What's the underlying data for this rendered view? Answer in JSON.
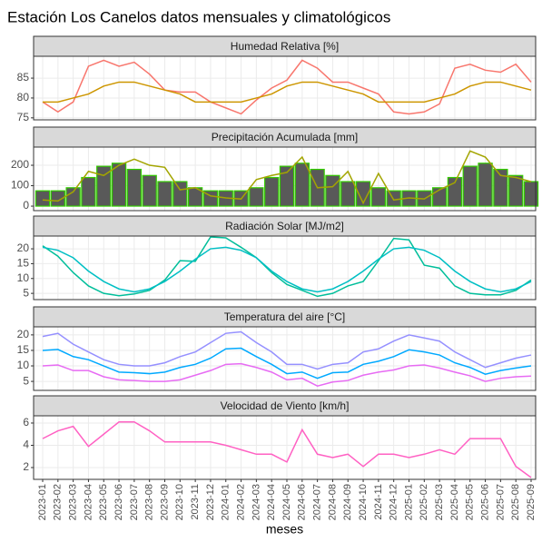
{
  "title": "Estación Los Canelos datos mensuales y climatológicos",
  "chart_data": [
    {
      "type": "line",
      "title": "Humedad Relativa [%]",
      "ylim": [
        74.5,
        90.5
      ],
      "yticks": [
        75,
        80,
        85
      ],
      "grid": true,
      "series": [
        {
          "color": "#F8766D",
          "values": [
            79,
            76.5,
            79,
            88,
            89.5,
            88,
            89,
            86,
            82,
            81.5,
            81.5,
            79,
            77.5,
            76,
            79.5,
            82.5,
            84.5,
            89.5,
            87.5,
            84,
            84,
            82.5,
            81,
            76.5,
            76,
            76.5,
            78.5,
            87.5,
            88.5,
            87,
            86.5,
            88.5,
            84
          ]
        },
        {
          "color": "#CD9600",
          "values": [
            79,
            79,
            80,
            81,
            83,
            84,
            84,
            83,
            82,
            81,
            79,
            79,
            79,
            79,
            80,
            81,
            83,
            84,
            84,
            83,
            82,
            81,
            79,
            79,
            79,
            79,
            80,
            81,
            83,
            84,
            84,
            83,
            82
          ]
        }
      ]
    },
    {
      "type": "bar_line",
      "title": "Precipitación Acumulada [mm]",
      "ylim": [
        -22,
        289
      ],
      "yticks": [
        0,
        100,
        200
      ],
      "grid": true,
      "values": [
        75,
        75,
        90,
        140,
        195,
        210,
        180,
        150,
        120,
        120,
        90,
        75,
        75,
        75,
        90,
        140,
        195,
        210,
        180,
        150,
        120,
        120,
        90,
        75,
        75,
        75,
        90,
        140,
        195,
        210,
        180,
        150,
        120
      ],
      "color": "#595959",
      "edgecolor": "#33CC00",
      "series": [
        {
          "color": "#A3A500",
          "values": [
            30,
            25,
            70,
            170,
            150,
            200,
            230,
            200,
            190,
            80,
            90,
            50,
            40,
            35,
            130,
            150,
            165,
            240,
            90,
            95,
            170,
            15,
            160,
            30,
            40,
            35,
            80,
            115,
            270,
            240,
            150,
            140,
            120
          ]
        }
      ]
    },
    {
      "type": "line",
      "title": "Radiación Solar [MJ/m2]",
      "ylim": [
        2.9,
        24.3
      ],
      "yticks": [
        5,
        10,
        15,
        20
      ],
      "grid": true,
      "series": [
        {
          "color": "#00BE9A",
          "values": [
            21,
            17.5,
            12,
            7.5,
            5,
            4.2,
            4.8,
            6,
            9.5,
            16,
            15.8,
            24,
            23.7,
            20.5,
            17,
            12,
            8,
            6,
            4,
            5,
            7.5,
            9,
            16,
            23.5,
            23,
            14.5,
            13.5,
            7.5,
            5,
            4.5,
            4.5,
            6,
            9.5
          ]
        },
        {
          "color": "#00BFC4",
          "values": [
            20.5,
            19.5,
            17,
            12.5,
            9,
            6.5,
            5.5,
            6.5,
            9,
            12.5,
            16.5,
            20,
            20.5,
            19.5,
            17,
            12.5,
            9,
            6.5,
            5.5,
            6.5,
            9,
            12.5,
            16.5,
            20,
            20.5,
            19.5,
            17,
            12.5,
            9,
            6.5,
            5.5,
            6.5,
            9
          ]
        }
      ]
    },
    {
      "type": "line",
      "title": "Temperatura del aire [°C]",
      "ylim": [
        2.1,
        22.6
      ],
      "yticks": [
        5,
        10,
        15,
        20
      ],
      "grid": true,
      "series": [
        {
          "color": "#9590FF",
          "values": [
            19.5,
            20.5,
            17,
            14.5,
            12,
            10.5,
            10,
            10,
            11,
            13,
            14.5,
            17.5,
            20.5,
            21,
            17.5,
            14.5,
            10.5,
            10.5,
            9,
            10.5,
            11,
            14.5,
            15.5,
            18,
            20,
            19,
            18,
            14.5,
            12,
            9.5,
            11,
            12.5,
            13.5
          ]
        },
        {
          "color": "#00A9FF",
          "values": [
            15,
            15.3,
            13,
            12,
            10,
            8,
            7.8,
            7.5,
            8,
            9.5,
            10.5,
            12.5,
            15.5,
            15.7,
            13,
            10.5,
            7.5,
            8,
            6,
            7.8,
            8,
            10.5,
            11.5,
            13,
            15.2,
            14.5,
            13.5,
            11,
            9.5,
            7.3,
            8.5,
            9.3,
            10
          ]
        },
        {
          "color": "#E76BF3",
          "values": [
            10,
            10.3,
            8.5,
            8.5,
            6.5,
            5.5,
            5.3,
            5,
            5,
            5.5,
            7,
            8.5,
            10.5,
            10.7,
            9.5,
            8,
            5.5,
            6,
            3.5,
            4.8,
            5.3,
            7,
            8,
            8.7,
            10,
            10.3,
            9.3,
            8,
            6.8,
            5,
            6,
            6.5,
            6.7
          ]
        }
      ]
    },
    {
      "type": "line",
      "title": "Velocidad de Viento [km/h]",
      "ylim": [
        0.94,
        6.65
      ],
      "yticks": [
        2,
        4,
        6
      ],
      "grid": true,
      "x_label": "meses",
      "categories": [
        "2023-01",
        "2023-02",
        "2023-03",
        "2023-04",
        "2023-05",
        "2023-06",
        "2023-07",
        "2023-08",
        "2023-09",
        "2023-10",
        "2023-11",
        "2023-12",
        "2024-01",
        "2024-02",
        "2024-03",
        "2024-04",
        "2024-05",
        "2024-06",
        "2024-07",
        "2024-08",
        "2024-09",
        "2024-10",
        "2024-11",
        "2024-12",
        "2025-01",
        "2025-02",
        "2025-03",
        "2025-04",
        "2025-05",
        "2025-06",
        "2025-07",
        "2025-08",
        "2025-09"
      ],
      "series": [
        {
          "color": "#FF61C3",
          "values": [
            4.6,
            5.3,
            5.7,
            3.9,
            5,
            6.1,
            6.1,
            5.3,
            4.3,
            4.3,
            4.3,
            4.3,
            4,
            3.6,
            3.2,
            3.2,
            2.5,
            5.4,
            3.2,
            2.9,
            3.2,
            2.1,
            3.2,
            3.2,
            2.9,
            3.2,
            3.6,
            3.2,
            4.6,
            4.6,
            4.6,
            2.1,
            1.1
          ]
        }
      ]
    }
  ]
}
